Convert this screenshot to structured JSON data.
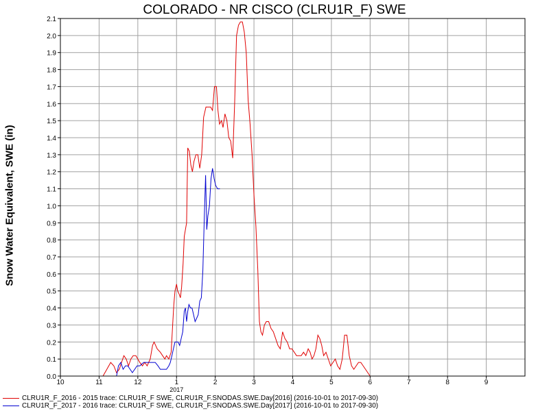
{
  "chart_data": {
    "type": "line",
    "title": "COLORADO - NR CISCO (CLRU1R_F) SWE",
    "xlabel": "",
    "ylabel": "Snow Water Equivalent, SWE (in)",
    "ylim": [
      0,
      2.1
    ],
    "y_ticks": [
      "0.0",
      "0.1",
      "0.2",
      "0.3",
      "0.4",
      "0.5",
      "0.6",
      "0.7",
      "0.8",
      "0.9",
      "1.0",
      "1.1",
      "1.2",
      "1.3",
      "1.4",
      "1.5",
      "1.6",
      "1.7",
      "1.8",
      "1.9",
      "2.0",
      "2.1"
    ],
    "x_ticks": [
      "10",
      "11",
      "12",
      "1",
      "2",
      "3",
      "4",
      "5",
      "6",
      "7",
      "8",
      "9"
    ],
    "x_year_label": "2017",
    "grid": true,
    "series": [
      {
        "name": "CLRU1R_F_2016 - 2015 trace: CLRU1R_F SWE, CLRU1R_F.SNODAS.SWE.Day[2016] (2016-10-01 to 2017-09-30)",
        "color": "#e00000",
        "points": [
          [
            1.1,
            0.0
          ],
          [
            1.2,
            0.04
          ],
          [
            1.3,
            0.08
          ],
          [
            1.38,
            0.06
          ],
          [
            1.45,
            0.02
          ],
          [
            1.52,
            0.04
          ],
          [
            1.58,
            0.08
          ],
          [
            1.64,
            0.12
          ],
          [
            1.7,
            0.1
          ],
          [
            1.76,
            0.06
          ],
          [
            1.82,
            0.1
          ],
          [
            1.88,
            0.12
          ],
          [
            1.95,
            0.12
          ],
          [
            2.0,
            0.1
          ],
          [
            2.05,
            0.08
          ],
          [
            2.12,
            0.06
          ],
          [
            2.18,
            0.08
          ],
          [
            2.24,
            0.06
          ],
          [
            2.32,
            0.1
          ],
          [
            2.38,
            0.18
          ],
          [
            2.42,
            0.2
          ],
          [
            2.46,
            0.18
          ],
          [
            2.5,
            0.16
          ],
          [
            2.58,
            0.14
          ],
          [
            2.64,
            0.12
          ],
          [
            2.7,
            0.1
          ],
          [
            2.74,
            0.12
          ],
          [
            2.8,
            0.1
          ],
          [
            2.86,
            0.14
          ],
          [
            2.9,
            0.3
          ],
          [
            2.93,
            0.42
          ],
          [
            2.96,
            0.5
          ],
          [
            3.0,
            0.54
          ],
          [
            3.03,
            0.5
          ],
          [
            3.07,
            0.48
          ],
          [
            3.1,
            0.46
          ],
          [
            3.13,
            0.52
          ],
          [
            3.17,
            0.66
          ],
          [
            3.2,
            0.82
          ],
          [
            3.23,
            0.86
          ],
          [
            3.26,
            0.9
          ],
          [
            3.29,
            1.34
          ],
          [
            3.33,
            1.32
          ],
          [
            3.37,
            1.24
          ],
          [
            3.41,
            1.2
          ],
          [
            3.45,
            1.26
          ],
          [
            3.5,
            1.3
          ],
          [
            3.55,
            1.3
          ],
          [
            3.6,
            1.22
          ],
          [
            3.65,
            1.3
          ],
          [
            3.7,
            1.52
          ],
          [
            3.76,
            1.58
          ],
          [
            3.82,
            1.58
          ],
          [
            3.88,
            1.58
          ],
          [
            3.93,
            1.56
          ],
          [
            3.98,
            1.7
          ],
          [
            4.03,
            1.7
          ],
          [
            4.07,
            1.56
          ],
          [
            4.11,
            1.48
          ],
          [
            4.16,
            1.5
          ],
          [
            4.2,
            1.46
          ],
          [
            4.25,
            1.54
          ],
          [
            4.3,
            1.5
          ],
          [
            4.35,
            1.4
          ],
          [
            4.4,
            1.38
          ],
          [
            4.45,
            1.28
          ],
          [
            4.5,
            1.6
          ],
          [
            4.55,
            2.0
          ],
          [
            4.6,
            2.06
          ],
          [
            4.65,
            2.08
          ],
          [
            4.7,
            2.08
          ],
          [
            4.75,
            2.02
          ],
          [
            4.8,
            1.9
          ],
          [
            4.85,
            1.62
          ],
          [
            4.9,
            1.48
          ],
          [
            4.95,
            1.3
          ],
          [
            5.0,
            1.06
          ],
          [
            5.05,
            0.88
          ],
          [
            5.1,
            0.62
          ],
          [
            5.14,
            0.32
          ],
          [
            5.18,
            0.26
          ],
          [
            5.22,
            0.24
          ],
          [
            5.27,
            0.3
          ],
          [
            5.32,
            0.32
          ],
          [
            5.38,
            0.32
          ],
          [
            5.44,
            0.28
          ],
          [
            5.5,
            0.26
          ],
          [
            5.56,
            0.22
          ],
          [
            5.62,
            0.18
          ],
          [
            5.68,
            0.16
          ],
          [
            5.74,
            0.26
          ],
          [
            5.8,
            0.22
          ],
          [
            5.86,
            0.2
          ],
          [
            5.92,
            0.16
          ],
          [
            5.98,
            0.16
          ],
          [
            6.04,
            0.14
          ],
          [
            6.1,
            0.12
          ],
          [
            6.16,
            0.12
          ],
          [
            6.22,
            0.12
          ],
          [
            6.28,
            0.14
          ],
          [
            6.34,
            0.12
          ],
          [
            6.4,
            0.16
          ],
          [
            6.45,
            0.14
          ],
          [
            6.5,
            0.1
          ],
          [
            6.55,
            0.12
          ],
          [
            6.6,
            0.16
          ],
          [
            6.65,
            0.24
          ],
          [
            6.7,
            0.22
          ],
          [
            6.75,
            0.18
          ],
          [
            6.8,
            0.12
          ],
          [
            6.86,
            0.14
          ],
          [
            6.92,
            0.1
          ],
          [
            6.98,
            0.06
          ],
          [
            7.04,
            0.08
          ],
          [
            7.1,
            0.1
          ],
          [
            7.16,
            0.06
          ],
          [
            7.22,
            0.04
          ],
          [
            7.28,
            0.1
          ],
          [
            7.34,
            0.24
          ],
          [
            7.4,
            0.24
          ],
          [
            7.46,
            0.12
          ],
          [
            7.52,
            0.06
          ],
          [
            7.58,
            0.04
          ],
          [
            7.64,
            0.06
          ],
          [
            7.7,
            0.08
          ],
          [
            7.76,
            0.08
          ],
          [
            7.82,
            0.06
          ],
          [
            7.88,
            0.04
          ],
          [
            7.94,
            0.02
          ],
          [
            8.0,
            0.0
          ]
        ]
      },
      {
        "name": "CLRU1R_F_2017 - 2016 trace: CLRU1R_F SWE, CLRU1R_F.SNODAS.SWE.Day[2017] (2016-10-01 to 2017-09-30)",
        "color": "#0000d0",
        "points": [
          [
            1.45,
            0.0
          ],
          [
            1.5,
            0.06
          ],
          [
            1.56,
            0.08
          ],
          [
            1.62,
            0.04
          ],
          [
            1.68,
            0.06
          ],
          [
            1.74,
            0.06
          ],
          [
            1.8,
            0.04
          ],
          [
            1.86,
            0.02
          ],
          [
            1.92,
            0.04
          ],
          [
            1.98,
            0.06
          ],
          [
            2.05,
            0.06
          ],
          [
            2.15,
            0.08
          ],
          [
            2.25,
            0.08
          ],
          [
            2.35,
            0.08
          ],
          [
            2.45,
            0.08
          ],
          [
            2.52,
            0.06
          ],
          [
            2.58,
            0.04
          ],
          [
            2.66,
            0.04
          ],
          [
            2.74,
            0.04
          ],
          [
            2.8,
            0.06
          ],
          [
            2.84,
            0.08
          ],
          [
            2.88,
            0.12
          ],
          [
            2.92,
            0.16
          ],
          [
            2.96,
            0.2
          ],
          [
            3.0,
            0.2
          ],
          [
            3.04,
            0.2
          ],
          [
            3.08,
            0.18
          ],
          [
            3.12,
            0.22
          ],
          [
            3.16,
            0.26
          ],
          [
            3.2,
            0.38
          ],
          [
            3.23,
            0.4
          ],
          [
            3.26,
            0.32
          ],
          [
            3.29,
            0.38
          ],
          [
            3.32,
            0.42
          ],
          [
            3.36,
            0.4
          ],
          [
            3.4,
            0.4
          ],
          [
            3.44,
            0.36
          ],
          [
            3.48,
            0.32
          ],
          [
            3.52,
            0.34
          ],
          [
            3.56,
            0.36
          ],
          [
            3.6,
            0.44
          ],
          [
            3.64,
            0.46
          ],
          [
            3.68,
            0.62
          ],
          [
            3.72,
            0.96
          ],
          [
            3.75,
            1.18
          ],
          [
            3.78,
            0.86
          ],
          [
            3.81,
            0.94
          ],
          [
            3.85,
            1.0
          ],
          [
            3.89,
            1.16
          ],
          [
            3.93,
            1.22
          ],
          [
            3.97,
            1.16
          ],
          [
            4.01,
            1.12
          ],
          [
            4.06,
            1.1
          ],
          [
            4.12,
            1.1
          ]
        ]
      }
    ]
  }
}
